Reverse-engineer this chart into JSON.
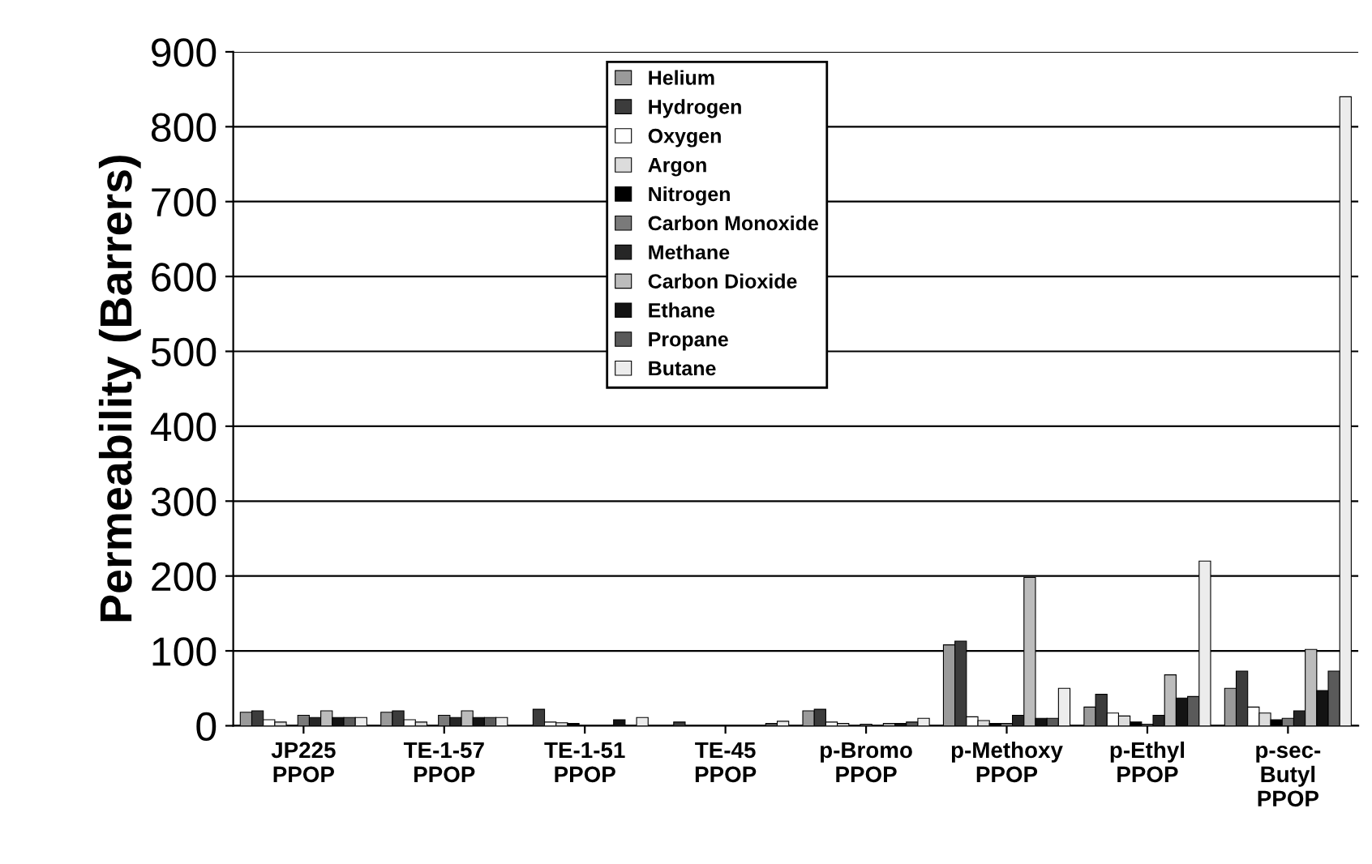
{
  "chart_data": {
    "type": "bar",
    "ylabel": "Permeability (Barrers)",
    "categories": [
      "JP225\nPPOP",
      "TE-1-57\nPPOP",
      "TE-1-51\nPPOP",
      "TE-45\nPPOP",
      "p-Bromo\nPPOP",
      "p-Methoxy\nPPOP",
      "p-Ethyl\nPPOP",
      "p-sec-\nButyl\nPPOP"
    ],
    "series": [
      {
        "name": "Helium",
        "color": "#9a9a9a",
        "values": [
          18,
          18,
          null,
          null,
          20,
          108,
          25,
          50
        ]
      },
      {
        "name": "Hydrogen",
        "color": "#3c3c3c",
        "values": [
          20,
          20,
          22,
          5,
          22,
          113,
          42,
          73
        ]
      },
      {
        "name": "Oxygen",
        "color": "#ffffff",
        "values": [
          8,
          8,
          5,
          null,
          5,
          12,
          17,
          25
        ]
      },
      {
        "name": "Argon",
        "color": "#dcdcdc",
        "values": [
          5,
          5,
          4,
          null,
          3,
          7,
          13,
          17
        ]
      },
      {
        "name": "Nitrogen",
        "color": "#000000",
        "values": [
          null,
          null,
          3,
          null,
          null,
          3,
          5,
          8
        ]
      },
      {
        "name": "Carbon Monoxide",
        "color": "#7a7a7a",
        "values": [
          14,
          14,
          null,
          null,
          2,
          3,
          2,
          10
        ]
      },
      {
        "name": "Methane",
        "color": "#262626",
        "values": [
          11,
          11,
          null,
          null,
          null,
          14,
          14,
          20
        ]
      },
      {
        "name": "Carbon Dioxide",
        "color": "#bcbcbc",
        "values": [
          20,
          20,
          null,
          null,
          3,
          198,
          68,
          102
        ]
      },
      {
        "name": "Ethane",
        "color": "#131313",
        "values": [
          11,
          11,
          8,
          null,
          3,
          10,
          37,
          47
        ]
      },
      {
        "name": "Propane",
        "color": "#5a5a5a",
        "values": [
          11,
          11,
          null,
          3,
          5,
          10,
          39,
          73
        ]
      },
      {
        "name": "Butane",
        "color": "#ececec",
        "values": [
          11,
          11,
          11,
          6,
          10,
          50,
          220,
          840
        ]
      }
    ],
    "ylim": [
      0,
      900
    ],
    "yticks": [
      0,
      100,
      200,
      300,
      400,
      500,
      600,
      700,
      800,
      900
    ],
    "grid": "y",
    "legend": "top"
  }
}
